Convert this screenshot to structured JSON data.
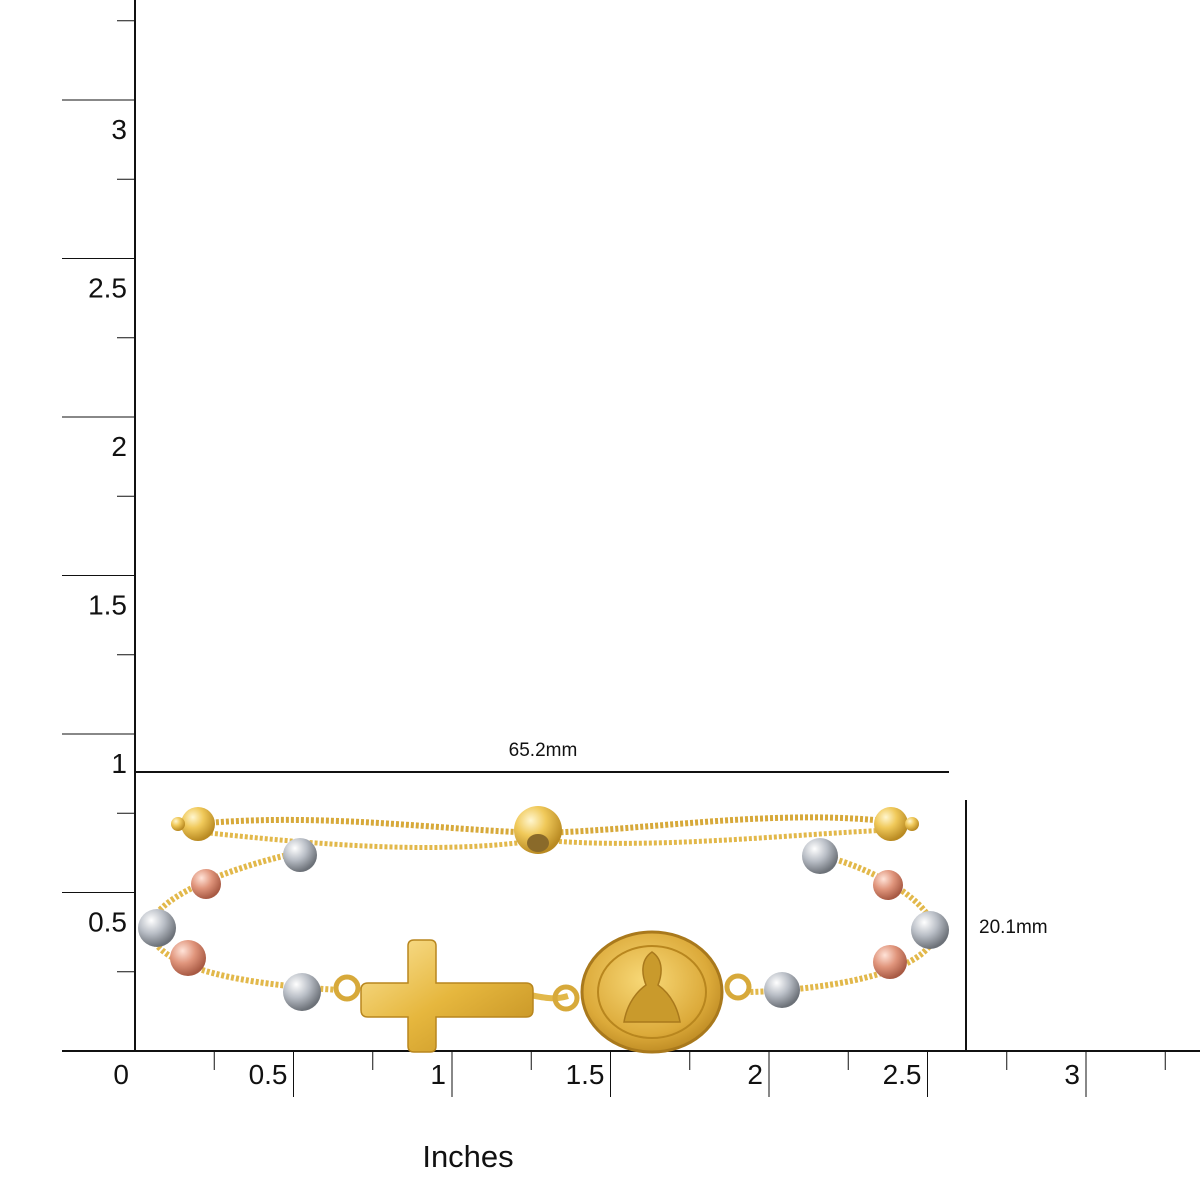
{
  "ruler": {
    "x_ticks": [
      "0",
      "0.5",
      "1",
      "1.5",
      "2",
      "2.5",
      "3"
    ],
    "y_ticks": [
      "0.5",
      "1",
      "1.5",
      "2",
      "2.5",
      "3"
    ],
    "unit_label": "Inches"
  },
  "dimensions": {
    "width_label": "65.2mm",
    "height_label": "20.1mm"
  },
  "product": {
    "metal_colors": {
      "yellow": "#e2b84a",
      "rose": "#e0957c",
      "white": "#c9cdd3"
    }
  }
}
